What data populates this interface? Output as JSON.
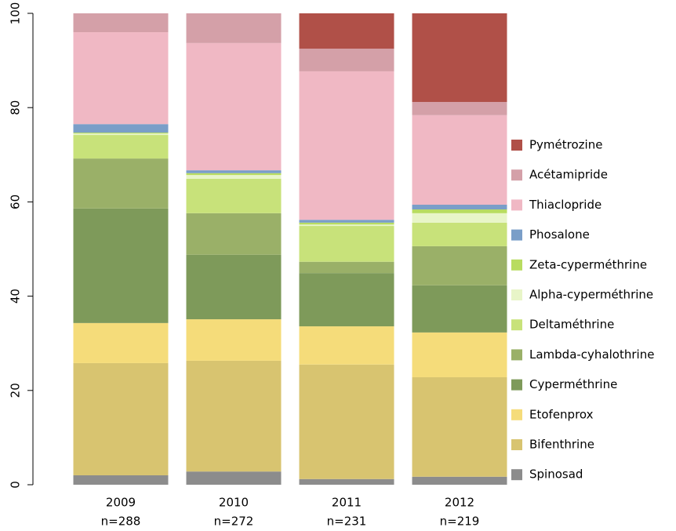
{
  "chart_data": {
    "type": "stacked_bar",
    "categories": [
      "2009",
      "2010",
      "2011",
      "2012"
    ],
    "category_sublabels": [
      "n=288",
      "n=272",
      "n=231",
      "n=219"
    ],
    "ylim": [
      0,
      100
    ],
    "yticks": [
      0,
      20,
      40,
      60,
      80,
      100
    ],
    "series": [
      {
        "name": "Spinosad",
        "color": "#8c8c8c",
        "values": [
          2.0,
          2.8,
          1.2,
          1.7
        ]
      },
      {
        "name": "Bifenthrine",
        "color": "#d8c470",
        "values": [
          23.8,
          23.5,
          24.3,
          21.1
        ]
      },
      {
        "name": "Etofenprox",
        "color": "#f5dc7a",
        "values": [
          8.5,
          8.8,
          8.1,
          9.5
        ]
      },
      {
        "name": "Cyperméthrine",
        "color": "#7e9a5a",
        "values": [
          24.3,
          13.7,
          11.3,
          10.0
        ]
      },
      {
        "name": "Lambda-cyhalothrine",
        "color": "#9ab068",
        "values": [
          10.6,
          8.8,
          2.4,
          8.3
        ]
      },
      {
        "name": "Deltaméthrine",
        "color": "#c8e27a",
        "values": [
          5.0,
          7.3,
          7.6,
          5.0
        ]
      },
      {
        "name": "Alpha-cyperméthrine",
        "color": "#e8f5c8",
        "values": [
          0.3,
          0.8,
          0.3,
          2.0
        ]
      },
      {
        "name": "Zeta-cyperméthrine",
        "color": "#b8dc60",
        "values": [
          0.2,
          0.4,
          0.4,
          0.8
        ]
      },
      {
        "name": "Phosalone",
        "color": "#7a9ec8",
        "values": [
          1.8,
          0.6,
          0.6,
          1.0
        ]
      },
      {
        "name": "Thiaclopride",
        "color": "#f0b8c4",
        "values": [
          19.5,
          27.0,
          31.5,
          19.0
        ]
      },
      {
        "name": "Acétamipride",
        "color": "#d4a0a8",
        "values": [
          4.0,
          6.3,
          4.8,
          2.8
        ]
      },
      {
        "name": "Pymétrozine",
        "color": "#b05048",
        "values": [
          0,
          0,
          7.5,
          18.8
        ]
      }
    ]
  }
}
